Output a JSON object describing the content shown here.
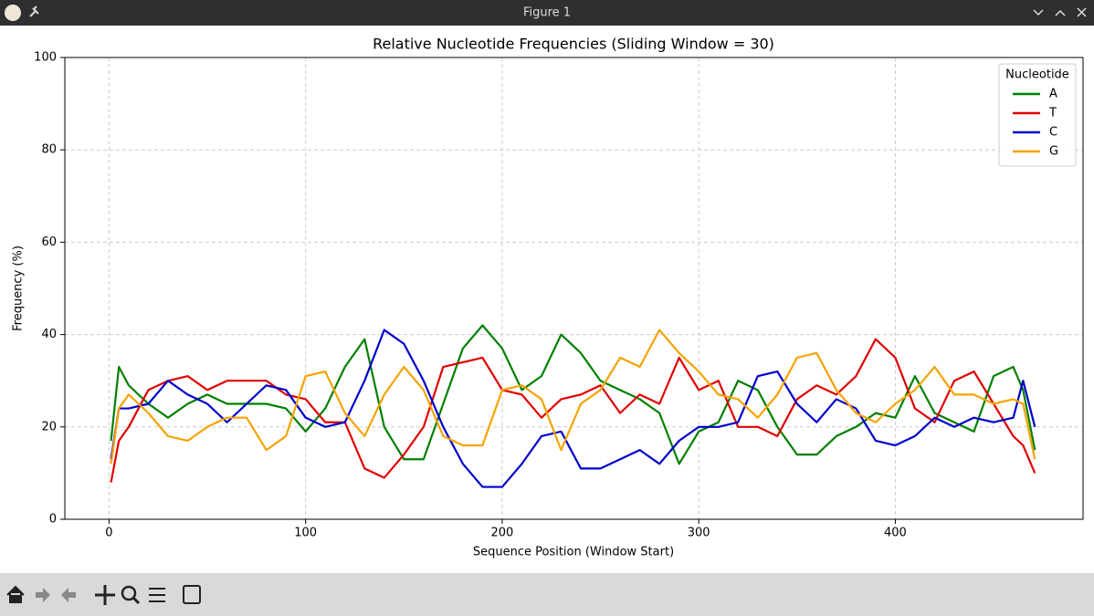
{
  "window": {
    "title": "Figure 1"
  },
  "chart_data": {
    "type": "line",
    "title": "Relative Nucleotide Frequencies (Sliding Window = 30)",
    "xlabel": "Sequence Position (Window Start)",
    "ylabel": "Frequency (%)",
    "x": [
      1,
      5,
      10,
      20,
      30,
      40,
      50,
      60,
      70,
      80,
      90,
      100,
      110,
      120,
      130,
      140,
      150,
      160,
      170,
      180,
      190,
      200,
      210,
      220,
      230,
      240,
      250,
      260,
      270,
      280,
      290,
      300,
      310,
      320,
      330,
      340,
      350,
      360,
      370,
      380,
      390,
      400,
      410,
      420,
      430,
      440,
      450,
      460,
      465,
      471
    ],
    "series": [
      {
        "name": "A",
        "color": "#008000",
        "values": [
          17,
          33,
          29,
          25,
          22,
          25,
          27,
          25,
          25,
          25,
          24,
          19,
          24,
          33,
          39,
          20,
          13,
          13,
          25,
          37,
          42,
          37,
          28,
          31,
          40,
          36,
          30,
          28,
          26,
          23,
          12,
          19,
          21,
          30,
          28,
          20,
          14,
          14,
          18,
          20,
          23,
          22,
          31,
          23,
          21,
          19,
          31,
          33,
          28,
          15
        ]
      },
      {
        "name": "T",
        "color": "#e00000",
        "values": [
          8,
          17,
          20,
          28,
          30,
          31,
          28,
          30,
          30,
          30,
          27,
          26,
          21,
          21,
          11,
          9,
          14,
          20,
          33,
          34,
          35,
          28,
          27,
          22,
          26,
          27,
          29,
          23,
          27,
          25,
          35,
          28,
          30,
          20,
          20,
          18,
          26,
          29,
          27,
          31,
          39,
          35,
          24,
          21,
          30,
          32,
          25,
          18,
          16,
          10
        ]
      },
      {
        "name": "C",
        "color": "#0000cc",
        "values": [
          13,
          24,
          24,
          25,
          30,
          27,
          25,
          21,
          25,
          29,
          28,
          22,
          20,
          21,
          30,
          41,
          38,
          30,
          20,
          12,
          7,
          7,
          12,
          18,
          19,
          11,
          11,
          13,
          15,
          12,
          17,
          20,
          20,
          21,
          31,
          32,
          25,
          21,
          26,
          24,
          17,
          16,
          18,
          22,
          20,
          22,
          21,
          22,
          30,
          20
        ]
      },
      {
        "name": "G",
        "color": "#f5a300",
        "values": [
          12,
          24,
          27,
          23,
          18,
          17,
          20,
          22,
          22,
          15,
          18,
          31,
          32,
          23,
          18,
          27,
          33,
          28,
          18,
          16,
          16,
          28,
          29,
          26,
          15,
          25,
          28,
          35,
          33,
          41,
          36,
          32,
          27,
          26,
          22,
          27,
          35,
          36,
          28,
          23,
          21,
          25,
          28,
          33,
          27,
          27,
          25,
          26,
          25,
          13
        ]
      }
    ],
    "legend_title": "Nucleotide",
    "legend": "upper right",
    "xlim": [
      -22.5,
      495.5
    ],
    "xticks": [
      0,
      100,
      200,
      300,
      400
    ],
    "ylim": [
      0,
      100
    ],
    "yticks": [
      0,
      20,
      40,
      60,
      80,
      100
    ],
    "grid": true
  }
}
